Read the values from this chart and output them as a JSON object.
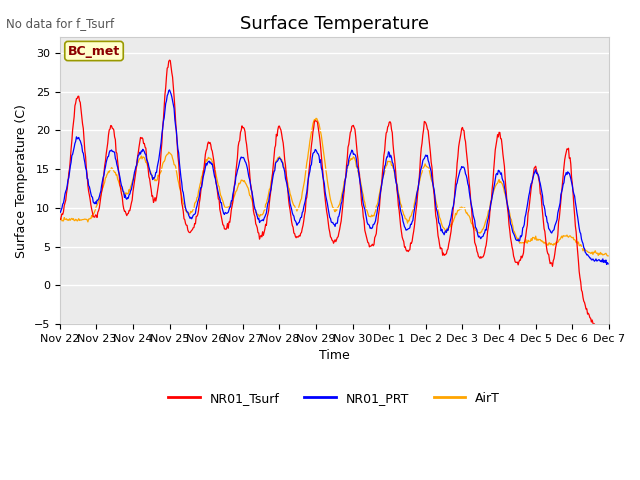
{
  "title": "Surface Temperature",
  "ylabel": "Surface Temperature (C)",
  "xlabel": "Time",
  "annotation": "No data for f_Tsurf",
  "legend_label": "BC_met",
  "series_labels": [
    "NR01_Tsurf",
    "NR01_PRT",
    "AirT"
  ],
  "series_colors": [
    "red",
    "blue",
    "orange"
  ],
  "ylim": [
    -5,
    32
  ],
  "yticks": [
    -5,
    0,
    5,
    10,
    15,
    20,
    25,
    30
  ],
  "plot_bg_color": "#ebebeb",
  "title_fontsize": 13,
  "label_fontsize": 9,
  "tick_fontsize": 8,
  "x_labels": [
    "Nov 22",
    "Nov 23",
    "Nov 24",
    "Nov 25",
    "Nov 26",
    "Nov 27",
    "Nov 28",
    "Nov 29",
    "Nov 30",
    "Dec 1",
    "Dec 2",
    "Dec 3",
    "Dec 4",
    "Dec 5",
    "Dec 6",
    "Dec 7"
  ]
}
